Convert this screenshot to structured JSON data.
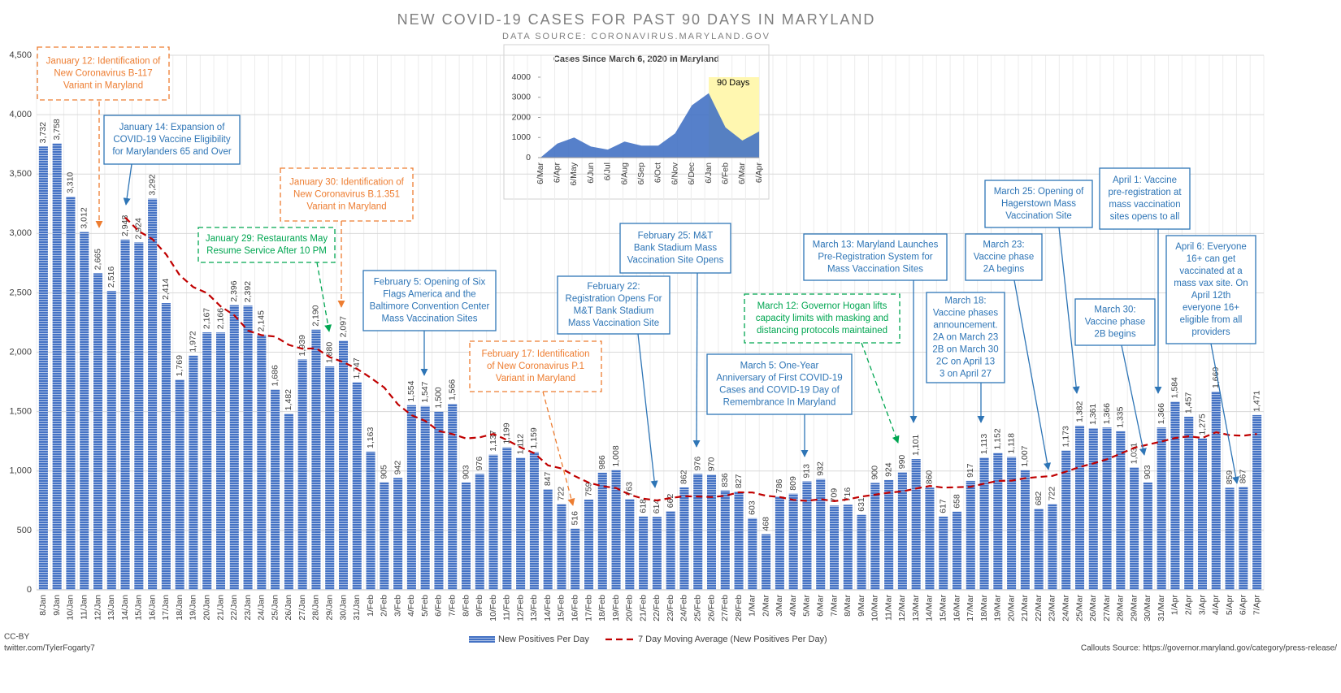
{
  "chart_data": [
    {
      "type": "bar",
      "title": "NEW COVID-19 CASES FOR PAST 90 DAYS IN MARYLAND",
      "subtitle": "DATA SOURCE: CORONAVIRUS.MARYLAND.GOV",
      "categories": [
        "8/Jan",
        "9/Jan",
        "10/Jan",
        "11/Jan",
        "12/Jan",
        "13/Jan",
        "14/Jan",
        "15/Jan",
        "16/Jan",
        "17/Jan",
        "18/Jan",
        "19/Jan",
        "20/Jan",
        "21/Jan",
        "22/Jan",
        "23/Jan",
        "24/Jan",
        "25/Jan",
        "26/Jan",
        "27/Jan",
        "28/Jan",
        "29/Jan",
        "30/Jan",
        "31/Jan",
        "1/Feb",
        "2/Feb",
        "3/Feb",
        "4/Feb",
        "5/Feb",
        "6/Feb",
        "7/Feb",
        "8/Feb",
        "9/Feb",
        "10/Feb",
        "11/Feb",
        "12/Feb",
        "13/Feb",
        "14/Feb",
        "15/Feb",
        "16/Feb",
        "17/Feb",
        "18/Feb",
        "19/Feb",
        "20/Feb",
        "21/Feb",
        "22/Feb",
        "23/Feb",
        "24/Feb",
        "25/Feb",
        "26/Feb",
        "27/Feb",
        "28/Feb",
        "1/Mar",
        "2/Mar",
        "3/Mar",
        "4/Mar",
        "5/Mar",
        "6/Mar",
        "7/Mar",
        "8/Mar",
        "9/Mar",
        "10/Mar",
        "11/Mar",
        "12/Mar",
        "13/Mar",
        "14/Mar",
        "15/Mar",
        "16/Mar",
        "17/Mar",
        "18/Mar",
        "19/Mar",
        "20/Mar",
        "21/Mar",
        "22/Mar",
        "23/Mar",
        "24/Mar",
        "25/Mar",
        "26/Mar",
        "27/Mar",
        "28/Mar",
        "29/Mar",
        "30/Mar",
        "31/Mar",
        "1/Apr",
        "2/Apr",
        "3/Apr",
        "4/Apr",
        "5/Apr",
        "6/Apr",
        "7/Apr"
      ],
      "series": [
        {
          "name": "New Positives Per Day",
          "color": "#4472c4",
          "values": [
            3732,
            3758,
            3310,
            3012,
            2665,
            2516,
            2948,
            2924,
            3292,
            2414,
            1769,
            1972,
            2167,
            2166,
            2396,
            2392,
            2145,
            1686,
            1482,
            1939,
            2190,
            1880,
            2097,
            1747,
            1163,
            905,
            942,
            1554,
            1547,
            1500,
            1566,
            903,
            976,
            1137,
            1199,
            1112,
            1159,
            847,
            722,
            516,
            759,
            986,
            1008,
            763,
            618,
            614,
            662,
            862,
            976,
            970,
            836,
            827,
            603,
            468,
            786,
            809,
            913,
            932,
            709,
            716,
            631,
            900,
            924,
            990,
            1101,
            860,
            617,
            658,
            917,
            1113,
            1152,
            1118,
            1007,
            682,
            722,
            1173,
            1382,
            1361,
            1366,
            1335,
            1031,
            903,
            1366,
            1584,
            1457,
            1275,
            1669,
            859,
            867,
            1471
          ],
          "value_labels": [
            "3,732",
            "3,758",
            "3,310",
            "3,012",
            "2,665",
            "2,516",
            "2,948",
            "2,924",
            "3,292",
            "2,414",
            "1,769",
            "1,972",
            "2,167",
            "2,166",
            "2,396",
            "2,392",
            "2,145",
            "1,686",
            "1,482",
            "1,939",
            "2,190",
            "1,880",
            "2,097",
            "1,747",
            "1,163",
            "905",
            "942",
            "1,554",
            "1,547",
            "1,500",
            "1,566",
            "903",
            "976",
            "1,137",
            "1,199",
            "1,112",
            "1,159",
            "847",
            "722",
            "516",
            "759",
            "986",
            "1,008",
            "763",
            "618",
            "614",
            "662",
            "862",
            "976",
            "970",
            "836",
            "827",
            "603",
            "468",
            "786",
            "809",
            "913",
            "932",
            "709",
            "716",
            "631",
            "900",
            "924",
            "990",
            "1,101",
            "860",
            "617",
            "658",
            "917",
            "1,113",
            "1,152",
            "1,118",
            "1,007",
            "682",
            "722",
            "1,173",
            "1,382",
            "1,361",
            "1,366",
            "1,335",
            "1,031",
            "903",
            "1,366",
            "1,584",
            "1,457",
            "1,275",
            "1,669",
            "859",
            "867",
            "1,471"
          ]
        },
        {
          "name": "7 Day Moving Average (New Positives Per Day)",
          "color": "#c00000",
          "type": "line",
          "values": [
            null,
            null,
            null,
            null,
            null,
            null,
            3134,
            3019,
            2952,
            2824,
            2647,
            2548,
            2498,
            2386,
            2311,
            2182,
            2144,
            2132,
            2062,
            2029,
            2033,
            1959,
            1917,
            1860,
            1785,
            1703,
            1561,
            1470,
            1422,
            1337,
            1311,
            1274,
            1284,
            1312,
            1261,
            1199,
            1150,
            1048,
            1022,
            956,
            902,
            872,
            857,
            800,
            767,
            752,
            773,
            788,
            786,
            781,
            791,
            821,
            819,
            792,
            781,
            757,
            749,
            763,
            746,
            762,
            785,
            801,
            818,
            829,
            853,
            875,
            860,
            864,
            867,
            894,
            917,
            919,
            940,
            950,
            959,
            995,
            1034,
            1064,
            1099,
            1146,
            1196,
            1222,
            1249,
            1278,
            1292,
            1279,
            1327,
            1302,
            1297,
            1312
          ]
        }
      ],
      "ylim": [
        0,
        4500
      ],
      "yticks": [
        0,
        500,
        {
          "value": 1000,
          "label": "1,000"
        },
        {
          "value": 1500,
          "label": "1,500"
        },
        {
          "value": 2000,
          "label": "2,000"
        },
        {
          "value": 2500,
          "label": "2,500"
        },
        {
          "value": 3000,
          "label": "3,000"
        },
        {
          "value": 3500,
          "label": "3,500"
        },
        {
          "value": 4000,
          "label": "4,000"
        },
        {
          "value": 4500,
          "label": "4,500"
        }
      ],
      "grid": true,
      "legend": "bottom",
      "annotations": [
        {
          "color": "#ed7d31",
          "lines": [
            "January 12: Identification of",
            "New Coronavirus B-117",
            "Variant in Maryland"
          ]
        },
        {
          "color": "#2e75b6",
          "lines": [
            "January 14: Expansion of",
            "COVID-19 Vaccine Eligibility",
            "for Marylanders 65 and Over"
          ]
        },
        {
          "color": "#ed7d31",
          "lines": [
            "January 30: Identification of",
            "New Coronavirus B.1.351",
            "Variant in Maryland"
          ]
        },
        {
          "color": "#00a651",
          "lines": [
            "January 29: Restaurants May",
            "Resume Service After 10 PM"
          ]
        },
        {
          "color": "#2e75b6",
          "lines": [
            "February 5: Opening of Six",
            "Flags America and the",
            "Baltimore Convention Center",
            "Mass Vaccination Sites"
          ]
        },
        {
          "color": "#ed7d31",
          "lines": [
            "February 17: Identification",
            "of New Coronavirus P.1",
            "Variant in Maryland"
          ]
        },
        {
          "color": "#2e75b6",
          "lines": [
            "February 22:",
            "Registration Opens For",
            "M&T Bank Stadium",
            "Mass Vaccination Site"
          ]
        },
        {
          "color": "#2e75b6",
          "lines": [
            "February 25: M&T",
            "Bank Stadium Mass",
            "Vaccination Site Opens"
          ]
        },
        {
          "color": "#2e75b6",
          "lines": [
            "March 5: One-Year",
            "Anniversary of First COVID-19",
            "Cases and COVID-19 Day of",
            "Remembrance In Maryland"
          ]
        },
        {
          "color": "#00a651",
          "lines": [
            "March 12: Governor Hogan lifts",
            "capacity limits with masking and",
            "distancing protocols maintained"
          ]
        },
        {
          "color": "#2e75b6",
          "lines": [
            "March 13: Maryland Launches",
            "Pre-Registration System for",
            "Mass Vaccination Sites"
          ]
        },
        {
          "color": "#2e75b6",
          "lines": [
            "March 18:",
            "Vaccine phases",
            "announcement.",
            "2A on March 23",
            "2B on March 30",
            "2C on April 13",
            "3 on April 27"
          ]
        },
        {
          "color": "#2e75b6",
          "lines": [
            "March 23:",
            "Vaccine phase",
            "2A begins"
          ]
        },
        {
          "color": "#2e75b6",
          "lines": [
            "March 25: Opening of",
            "Hagerstown Mass",
            "Vaccination Site"
          ]
        },
        {
          "color": "#2e75b6",
          "lines": [
            "April 1: Vaccine",
            "pre-registration at",
            "mass vaccination",
            "sites opens to all"
          ]
        },
        {
          "color": "#2e75b6",
          "lines": [
            "March 30:",
            "Vaccine phase",
            "2B begins"
          ]
        },
        {
          "color": "#2e75b6",
          "lines": [
            "April 6: Everyone",
            "16+ can get",
            "vaccinated at a",
            "mass vax site. On",
            "April 12th",
            "everyone 16+",
            "eligible from all",
            "providers"
          ]
        }
      ],
      "credit": [
        "CC-BY",
        "twitter.com/TylerFogarty7"
      ],
      "source_note": "Callouts Source: https://governor.maryland.gov/category/press-release/"
    },
    {
      "type": "area",
      "title": "Cases Since March 6, 2020 in Maryland",
      "categories": [
        "6/Mar",
        "6/Apr",
        "6/May",
        "6/Jun",
        "6/Jul",
        "6/Aug",
        "6/Sep",
        "6/Oct",
        "6/Nov",
        "6/Dec",
        "6/Jan",
        "6/Feb",
        "6/Mar",
        "6/Apr"
      ],
      "values": [
        0,
        700,
        1000,
        550,
        400,
        800,
        600,
        600,
        1200,
        2600,
        3200,
        1500,
        850,
        1300
      ],
      "color": "#4472c4",
      "highlight_color": "#fff7b0",
      "annotation": "90 Days",
      "ylim": [
        0,
        4000
      ],
      "yticks": [
        0,
        1000,
        2000,
        3000,
        4000
      ]
    }
  ]
}
